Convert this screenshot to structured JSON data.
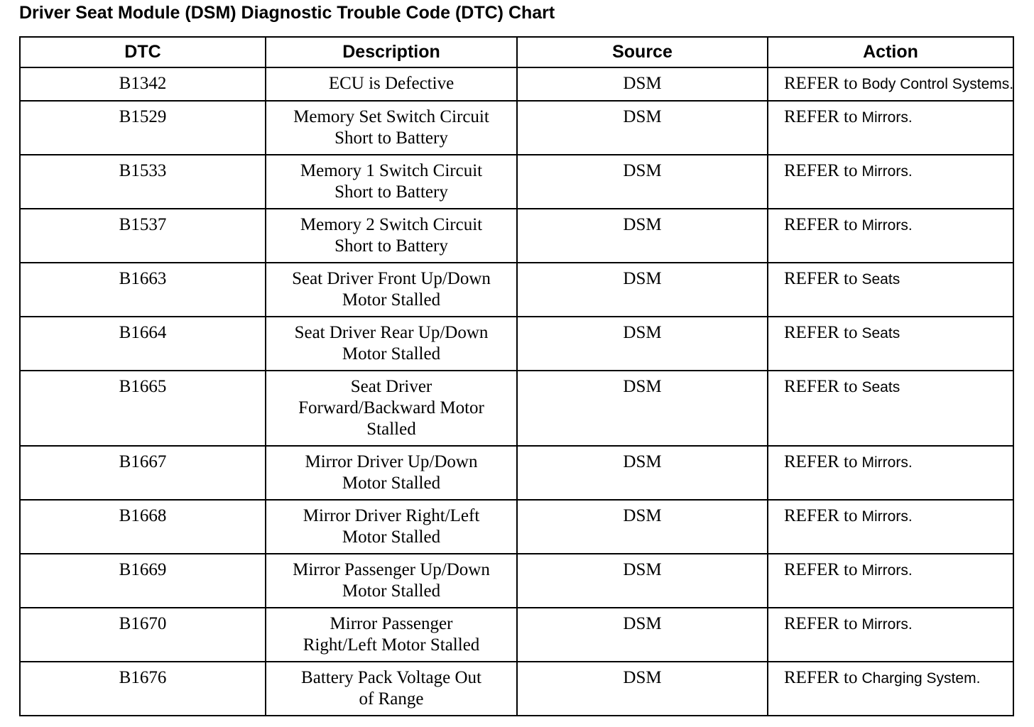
{
  "title": "Driver Seat Module (DSM) Diagnostic Trouble Code (DTC) Chart",
  "table": {
    "headers": [
      "DTC",
      "Description",
      "Source",
      "Action"
    ],
    "rows": [
      {
        "dtc": "B1342",
        "description": [
          "ECU is Defective"
        ],
        "source": "DSM",
        "action": {
          "verb": "REFER to",
          "target": "Body Control Systems."
        }
      },
      {
        "dtc": "B1529",
        "description": [
          "Memory Set Switch Circuit",
          "Short to Battery"
        ],
        "source": "DSM",
        "action": {
          "verb": "REFER to",
          "target": "Mirrors."
        }
      },
      {
        "dtc": "B1533",
        "description": [
          "Memory 1 Switch Circuit",
          "Short to Battery"
        ],
        "source": "DSM",
        "action": {
          "verb": "REFER to",
          "target": "Mirrors."
        }
      },
      {
        "dtc": "B1537",
        "description": [
          "Memory 2 Switch Circuit",
          "Short to Battery"
        ],
        "source": "DSM",
        "action": {
          "verb": "REFER to",
          "target": "Mirrors."
        }
      },
      {
        "dtc": "B1663",
        "description": [
          "Seat Driver Front Up/Down",
          "Motor Stalled"
        ],
        "source": "DSM",
        "action": {
          "verb": "REFER to",
          "target": "Seats"
        }
      },
      {
        "dtc": "B1664",
        "description": [
          "Seat Driver Rear Up/Down",
          "Motor Stalled"
        ],
        "source": "DSM",
        "action": {
          "verb": "REFER to",
          "target": "Seats"
        }
      },
      {
        "dtc": "B1665",
        "description": [
          "Seat Driver",
          "Forward/Backward Motor",
          "Stalled"
        ],
        "source": "DSM",
        "action": {
          "verb": "REFER to",
          "target": "Seats"
        }
      },
      {
        "dtc": "B1667",
        "description": [
          "Mirror Driver Up/Down",
          "Motor Stalled"
        ],
        "source": "DSM",
        "action": {
          "verb": "REFER to",
          "target": "Mirrors."
        }
      },
      {
        "dtc": "B1668",
        "description": [
          "Mirror Driver Right/Left",
          "Motor Stalled"
        ],
        "source": "DSM",
        "action": {
          "verb": "REFER to",
          "target": "Mirrors."
        }
      },
      {
        "dtc": "B1669",
        "description": [
          "Mirror Passenger Up/Down",
          "Motor Stalled"
        ],
        "source": "DSM",
        "action": {
          "verb": "REFER to",
          "target": "Mirrors."
        }
      },
      {
        "dtc": "B1670",
        "description": [
          "Mirror Passenger",
          "Right/Left Motor Stalled"
        ],
        "source": "DSM",
        "action": {
          "verb": "REFER to",
          "target": "Mirrors."
        }
      },
      {
        "dtc": "B1676",
        "description": [
          "Battery Pack Voltage Out",
          "of Range"
        ],
        "source": "DSM",
        "action": {
          "verb": "REFER to",
          "target": "Charging System."
        }
      }
    ]
  }
}
